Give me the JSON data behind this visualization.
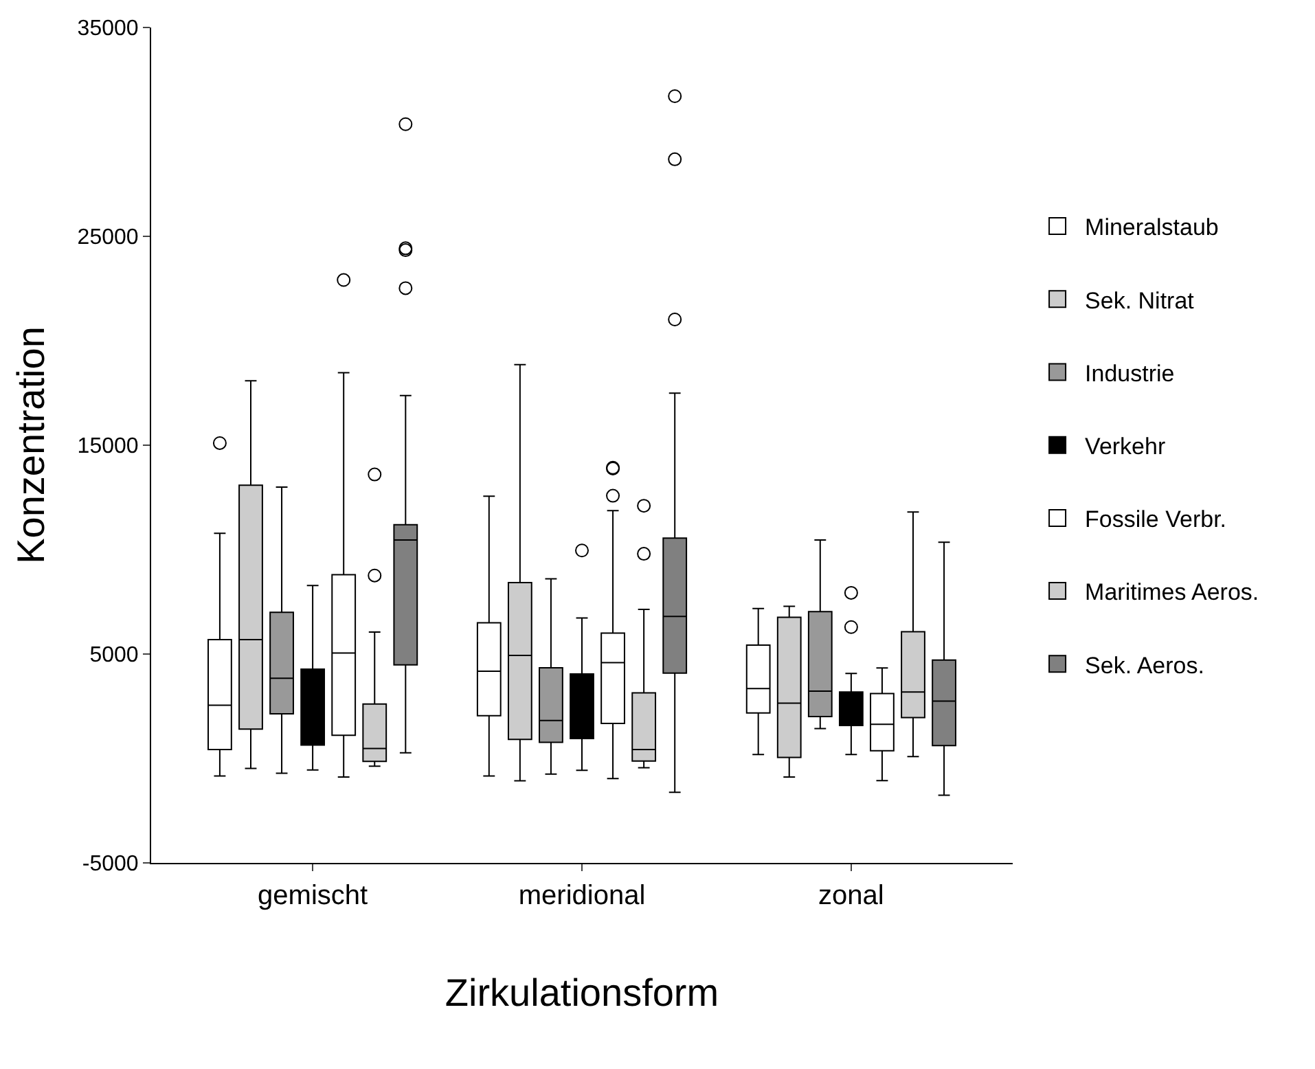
{
  "chart_data": {
    "type": "box",
    "xlabel": "Zirkulationsform",
    "ylabel": "Konzentration",
    "categories": [
      "gemischt",
      "meridional",
      "zonal"
    ],
    "ylim": [
      -5000,
      35000
    ],
    "yticks": [
      -5000,
      5000,
      15000,
      25000,
      35000
    ],
    "legend": "right",
    "series": [
      {
        "name": "Mineralstaub",
        "color": "#ffffff",
        "boxes": [
          {
            "low": -840,
            "q1": 430,
            "median": 2550,
            "q3": 5690,
            "high": 10780,
            "outliers": [
              15100
            ]
          },
          {
            "low": -840,
            "q1": 2050,
            "median": 4180,
            "q3": 6500,
            "high": 12560
          },
          {
            "low": 190,
            "q1": 2180,
            "median": 3350,
            "q3": 5430,
            "high": 7180
          }
        ]
      },
      {
        "name": "Sek. Nitrat",
        "color": "#cccccc",
        "boxes": [
          {
            "low": -480,
            "q1": 1410,
            "median": 5690,
            "q3": 13080,
            "high": 18080
          },
          {
            "low": -1070,
            "q1": 910,
            "median": 4930,
            "q3": 8420,
            "high": 18860
          },
          {
            "low": -890,
            "q1": 50,
            "median": 2650,
            "q3": 6760,
            "high": 7290
          }
        ]
      },
      {
        "name": "Industrie",
        "color": "#999999",
        "boxes": [
          {
            "low": -710,
            "q1": 2140,
            "median": 3840,
            "q3": 7000,
            "high": 12990
          },
          {
            "low": -750,
            "q1": 770,
            "median": 1820,
            "q3": 4340,
            "high": 8600
          },
          {
            "low": 1430,
            "q1": 2010,
            "median": 3220,
            "q3": 7030,
            "high": 10460
          }
        ]
      },
      {
        "name": "Verkehr",
        "color": "#000000",
        "boxes": [
          {
            "low": -550,
            "q1": 640,
            "median": 1700,
            "q3": 4280,
            "high": 8280
          },
          {
            "low": -570,
            "q1": 950,
            "median": 2770,
            "q3": 4050,
            "high": 6730,
            "outliers": [
              9960
            ]
          },
          {
            "low": 190,
            "q1": 1580,
            "median": 2070,
            "q3": 3180,
            "high": 4070,
            "outliers": [
              6290,
              7930
            ]
          }
        ]
      },
      {
        "name": "Fossile Verbr.",
        "color": "#ffffff",
        "boxes": [
          {
            "low": -890,
            "q1": 1110,
            "median": 5050,
            "q3": 8800,
            "high": 18470,
            "outliers": [
              22910
            ]
          },
          {
            "low": -960,
            "q1": 1680,
            "median": 4590,
            "q3": 6000,
            "high": 11870,
            "outliers": [
              12580,
              13880,
              13920
            ]
          },
          {
            "low": -1060,
            "q1": 370,
            "median": 1640,
            "q3": 3110,
            "high": 4330
          }
        ]
      },
      {
        "name": "Maritimes Aeros.",
        "color": "#cccccc",
        "boxes": [
          {
            "low": -370,
            "q1": -140,
            "median": 480,
            "q3": 2610,
            "high": 6050,
            "outliers": [
              8760,
              13600
            ]
          },
          {
            "low": -440,
            "q1": -120,
            "median": 430,
            "q3": 3140,
            "high": 7140,
            "outliers": [
              9800,
              12100
            ]
          },
          {
            "low": 90,
            "q1": 1960,
            "median": 3180,
            "q3": 6070,
            "high": 11800
          }
        ]
      },
      {
        "name": "Sek. Aeros.",
        "color": "#808080",
        "boxes": [
          {
            "low": 270,
            "q1": 4480,
            "median": 10460,
            "q3": 11190,
            "high": 17380,
            "outliers": [
              22520,
              24340,
              24430,
              30370
            ]
          },
          {
            "low": -1620,
            "q1": 4090,
            "median": 6800,
            "q3": 10550,
            "high": 17490,
            "outliers": [
              21020,
              28690,
              31710
            ]
          },
          {
            "low": -1760,
            "q1": 620,
            "median": 2750,
            "q3": 4710,
            "high": 10350
          }
        ]
      }
    ]
  }
}
